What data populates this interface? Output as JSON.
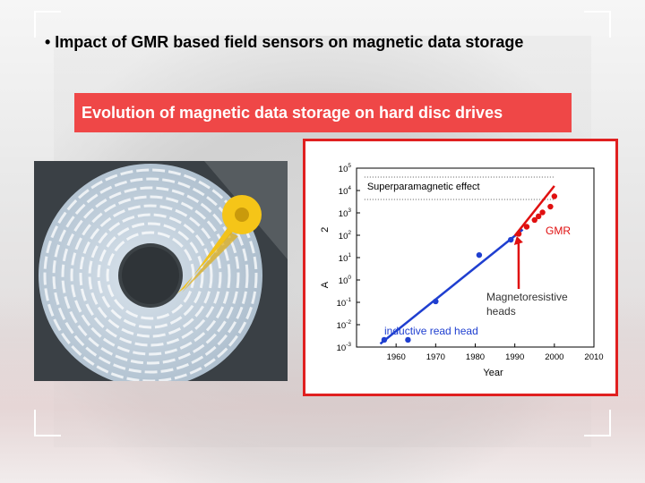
{
  "slide": {
    "bullet": "• Impact of GMR based field sensors on magnetic data storage",
    "banner": "Evolution of magnetic data storage  on hard disc drives"
  },
  "colors": {
    "banner": "#ef4747",
    "frame": "#e02020",
    "inductive_series": "#1f3fd0",
    "gmr_series": "#e01010",
    "arrow": "#e01010"
  },
  "icons": {
    "disk": "hard-disk-platter-photo",
    "head": "read-write-head-arm"
  },
  "chart_data": {
    "type": "scatter",
    "xlabel": "Year",
    "ylabel": "A                  2",
    "ylabel_note": "areal density symbol partially obscured",
    "xlim": [
      1950,
      2010
    ],
    "ylim_log10": [
      -3,
      5
    ],
    "log_y": true,
    "x_ticks": [
      "1960",
      "1970",
      "1980",
      "1990",
      "2000",
      "2010"
    ],
    "y_ticks": [
      {
        "base": "10",
        "exp": "-3"
      },
      {
        "base": "10",
        "exp": "-2"
      },
      {
        "base": "10",
        "exp": "-1"
      },
      {
        "base": "10",
        "exp": "0"
      },
      {
        "base": "10",
        "exp": "1"
      },
      {
        "base": "10",
        "exp": "2"
      },
      {
        "base": "10",
        "exp": "3"
      },
      {
        "base": "10",
        "exp": "4"
      },
      {
        "base": "10",
        "exp": "5"
      }
    ],
    "series": [
      {
        "name": "inductive read head",
        "color": "#1f3fd0",
        "points": [
          [
            1957,
            0.0021
          ],
          [
            1963,
            0.0021
          ],
          [
            1970,
            0.11
          ],
          [
            1981,
            13
          ],
          [
            1989,
            63
          ]
        ],
        "trend": [
          [
            1956,
            0.0014
          ],
          [
            1992,
            180
          ]
        ]
      },
      {
        "name": "Magnetoresistive heads",
        "color": "#e01010",
        "points": [
          [
            1991,
            115
          ],
          [
            1993,
            240
          ],
          [
            1995,
            480
          ],
          [
            1996,
            700
          ],
          [
            1997,
            1050
          ],
          [
            1999,
            1900
          ],
          [
            2000,
            5500
          ]
        ],
        "trend": [
          [
            1990,
            95
          ],
          [
            2000,
            16000
          ]
        ]
      }
    ],
    "threshold": {
      "label": "Superparamagnetic effect",
      "y_log10": [
        3.6,
        4.6
      ],
      "x_range": [
        1952,
        2000
      ]
    },
    "annotations": [
      {
        "text": "GMR",
        "color": "#e01010"
      },
      {
        "text_line1": "Magnetoresistive",
        "text_line2": "heads"
      },
      {
        "text": "inductive read head",
        "color": "#1f3fd0"
      },
      {
        "text": "Superparamagnetic effect"
      }
    ]
  }
}
